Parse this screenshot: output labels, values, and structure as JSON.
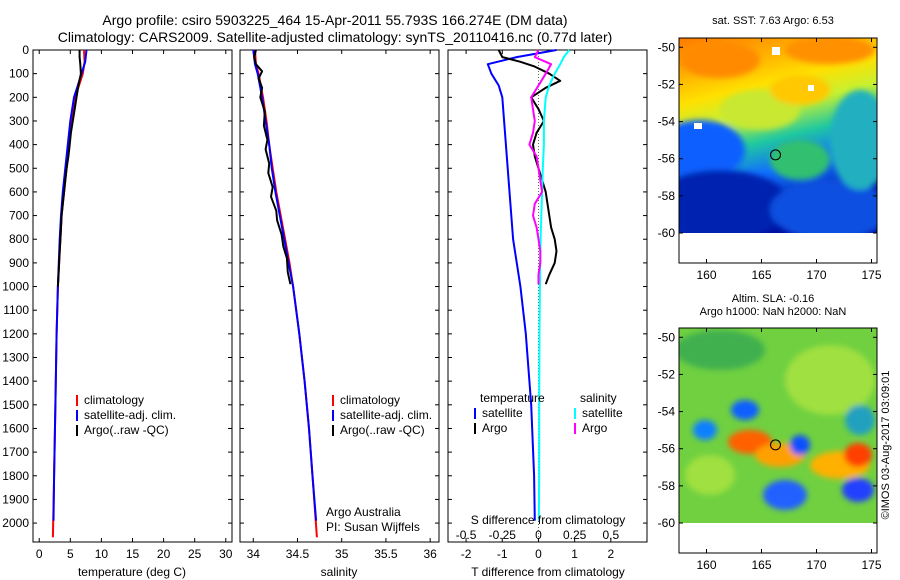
{
  "titles": {
    "line1": "Argo profile: csiro 5903225_464 15-Apr-2011 55.793S 166.274E (DM data)",
    "line2": "Climatology: CARS2009. Satellite-adjusted climatology: synTS_20110416.nc (0.77d later)"
  },
  "colors": {
    "climatology": "#ff0000",
    "satellite": "#0000ff",
    "argo": "#000000",
    "salinity_satellite": "#00ffff",
    "salinity_argo": "#ff00ff"
  },
  "credits": {
    "argo": "Argo Australia",
    "pi": "PI: Susan Wijffels",
    "stamp": "©IMOS 03-Aug-2017 03:09:01"
  },
  "chart_data": [
    {
      "type": "line",
      "id": "temperature",
      "xlabel": "temperature (deg C)",
      "xlim": [
        -1,
        31
      ],
      "xticks": [
        0,
        5,
        10,
        15,
        20,
        25,
        30
      ],
      "ylim": [
        2080,
        0
      ],
      "yticks": [
        0,
        100,
        200,
        300,
        400,
        500,
        600,
        700,
        800,
        900,
        1000,
        1100,
        1200,
        1300,
        1400,
        1500,
        1600,
        1700,
        1800,
        1900,
        2000
      ],
      "legend": [
        "climatology",
        "satellite-adj. clim.",
        "Argo(..raw -QC)"
      ],
      "series": [
        {
          "name": "climatology",
          "color": "#ff0000",
          "depth": [
            0,
            50,
            100,
            150,
            200,
            300,
            400,
            500,
            600,
            700,
            800,
            1000,
            1200,
            1500,
            1800,
            2060
          ],
          "values": [
            7.2,
            7.3,
            7.0,
            6.4,
            5.8,
            5.2,
            4.8,
            4.4,
            4.0,
            3.6,
            3.4,
            3.0,
            2.8,
            2.6,
            2.4,
            2.2
          ]
        },
        {
          "name": "satellite-adj. clim.",
          "color": "#0000ff",
          "depth": [
            0,
            50,
            100,
            150,
            200,
            300,
            400,
            500,
            600,
            700,
            800,
            1000,
            1200,
            1500,
            1800,
            1990
          ],
          "values": [
            7.6,
            7.4,
            6.8,
            6.2,
            5.6,
            5.0,
            4.6,
            4.2,
            3.8,
            3.5,
            3.3,
            3.0,
            2.8,
            2.6,
            2.4,
            2.3
          ]
        },
        {
          "name": "Argo(..raw -QC)",
          "color": "#000000",
          "depth": [
            0,
            30,
            60,
            100,
            150,
            200,
            250,
            300,
            350,
            400,
            450,
            500,
            550,
            600,
            650,
            700,
            750,
            800,
            850,
            900,
            950,
            1000
          ],
          "values": [
            6.5,
            6.5,
            6.6,
            6.7,
            6.3,
            6.0,
            5.7,
            5.4,
            5.1,
            4.9,
            4.7,
            4.4,
            4.2,
            4.0,
            3.8,
            3.6,
            3.5,
            3.4,
            3.3,
            3.2,
            3.1,
            3.0
          ]
        }
      ]
    },
    {
      "type": "line",
      "id": "salinity",
      "xlabel": "salinity",
      "xlim": [
        33.85,
        36.1
      ],
      "xticks": [
        34,
        34.5,
        35,
        35.5,
        36
      ],
      "ylim": [
        2080,
        0
      ],
      "legend": [
        "climatology",
        "satellite-adj. clim.",
        "Argo(..raw -QC)"
      ],
      "series": [
        {
          "name": "climatology",
          "color": "#ff0000",
          "depth": [
            0,
            60,
            100,
            200,
            300,
            400,
            500,
            600,
            700,
            800,
            900,
            1000,
            1200,
            1400,
            1600,
            1800,
            2060
          ],
          "values": [
            34.02,
            34.03,
            34.06,
            34.11,
            34.15,
            34.18,
            34.22,
            34.26,
            34.31,
            34.36,
            34.41,
            34.45,
            34.52,
            34.58,
            34.63,
            34.67,
            34.72
          ]
        },
        {
          "name": "satellite-adj. clim.",
          "color": "#0000ff",
          "depth": [
            0,
            60,
            100,
            200,
            300,
            400,
            500,
            600,
            700,
            800,
            900,
            1000,
            1200,
            1400,
            1600,
            1800,
            1990
          ],
          "values": [
            34.0,
            34.02,
            34.05,
            34.1,
            34.14,
            34.18,
            34.21,
            34.25,
            34.3,
            34.35,
            34.4,
            34.45,
            34.52,
            34.58,
            34.63,
            34.67,
            34.71
          ]
        },
        {
          "name": "Argo(..raw -QC)",
          "color": "#000000",
          "depth": [
            0,
            30,
            60,
            90,
            120,
            160,
            200,
            260,
            320,
            380,
            420,
            480,
            520,
            580,
            620,
            680,
            720,
            780,
            830,
            880,
            940,
            990
          ],
          "values": [
            34.03,
            34.01,
            34.03,
            34.1,
            34.06,
            34.1,
            34.08,
            34.13,
            34.12,
            34.16,
            34.14,
            34.18,
            34.17,
            34.22,
            34.2,
            34.26,
            34.27,
            34.32,
            34.34,
            34.38,
            34.39,
            34.42
          ]
        }
      ]
    },
    {
      "type": "line",
      "id": "difference",
      "xlabel": "T difference from climatology",
      "xlabel_top": "S difference from climatology",
      "xlim": [
        -2.5,
        3.0
      ],
      "xticks": [
        -2,
        -1,
        0,
        1,
        2
      ],
      "sticks": [
        {
          "label": "-0.5",
          "t": -2.0
        },
        {
          "label": "-0.25",
          "t": -1.0
        },
        {
          "label": "0",
          "t": 0.0
        },
        {
          "label": "0.25",
          "t": 1.0
        },
        {
          "label": "0.5",
          "t": 2.0
        }
      ],
      "ylim": [
        2080,
        0
      ],
      "legend_groups": [
        {
          "heading": "temperature",
          "items": [
            "satellite",
            "Argo"
          ]
        },
        {
          "heading": "salinity",
          "items": [
            "satellite",
            "Argo"
          ]
        }
      ],
      "series": [
        {
          "name": "satellite",
          "group": "temperature",
          "color": "#0000ff",
          "depth": [
            0,
            30,
            60,
            100,
            150,
            200,
            300,
            400,
            500,
            600,
            700,
            800,
            1000,
            1200,
            1500,
            1800,
            1990
          ],
          "values": [
            0.5,
            -0.6,
            -1.4,
            -1.3,
            -1.1,
            -1.0,
            -0.95,
            -0.9,
            -0.85,
            -0.8,
            -0.75,
            -0.7,
            -0.5,
            -0.35,
            -0.2,
            -0.12,
            -0.1
          ]
        },
        {
          "name": "Argo",
          "group": "temperature",
          "color": "#000000",
          "depth": [
            0,
            30,
            50,
            70,
            100,
            130,
            160,
            200,
            250,
            300,
            350,
            400,
            450,
            500,
            550,
            600,
            650,
            700,
            750,
            800,
            850,
            900,
            950,
            990
          ],
          "values": [
            -1.1,
            -1.0,
            -0.5,
            -0.1,
            0.3,
            0.6,
            0.2,
            -0.2,
            0.0,
            0.15,
            -0.05,
            -0.15,
            -0.1,
            0.0,
            0.1,
            0.2,
            0.25,
            0.3,
            0.35,
            0.45,
            0.5,
            0.45,
            0.3,
            0.2
          ]
        },
        {
          "name": "satellite",
          "group": "salinity",
          "color": "#00ffff",
          "depth": [
            0,
            30,
            60,
            100,
            150,
            200,
            300,
            400,
            500,
            600,
            700,
            800,
            1000,
            1200,
            1500,
            1800,
            1990
          ],
          "values": [
            0.85,
            0.7,
            0.6,
            0.45,
            0.3,
            0.2,
            0.15,
            0.15,
            0.12,
            0.1,
            0.08,
            0.06,
            0.04,
            0.03,
            0.02,
            0.02,
            0.01
          ]
        },
        {
          "name": "Argo",
          "group": "salinity",
          "color": "#ff00ff",
          "depth": [
            0,
            30,
            60,
            100,
            150,
            200,
            250,
            300,
            350,
            400,
            450,
            500,
            550,
            600,
            650,
            700,
            750,
            800,
            850,
            900,
            950,
            990
          ],
          "values": [
            0.0,
            -0.1,
            0.35,
            0.2,
            0.0,
            -0.2,
            -0.15,
            -0.1,
            -0.15,
            -0.25,
            -0.05,
            0.0,
            0.05,
            0.1,
            -0.1,
            -0.15,
            -0.05,
            0.0,
            0.05,
            0.05,
            0.0,
            0.0
          ]
        }
      ]
    },
    {
      "type": "heatmap",
      "id": "sst_map",
      "title": "sat. SST: 7.63 Argo: 6.53",
      "xlim": [
        157.5,
        175.5
      ],
      "ylim": [
        -60,
        -49.5
      ],
      "xticks": [
        160,
        165,
        170,
        175
      ],
      "yticks": [
        -50,
        -52,
        -54,
        -56,
        -58,
        -60
      ],
      "float_position": [
        166.274,
        -55.793
      ]
    },
    {
      "type": "heatmap",
      "id": "sla_map",
      "title": "Altim. SLA: -0.16",
      "subtitle": "Argo h1000: NaN h2000: NaN",
      "xlim": [
        157.5,
        175.5
      ],
      "ylim": [
        -60,
        -49.5
      ],
      "xticks": [
        160,
        165,
        170,
        175
      ],
      "yticks": [
        -50,
        -52,
        -54,
        -56,
        -58,
        -60
      ],
      "float_position": [
        166.274,
        -55.793
      ]
    }
  ]
}
